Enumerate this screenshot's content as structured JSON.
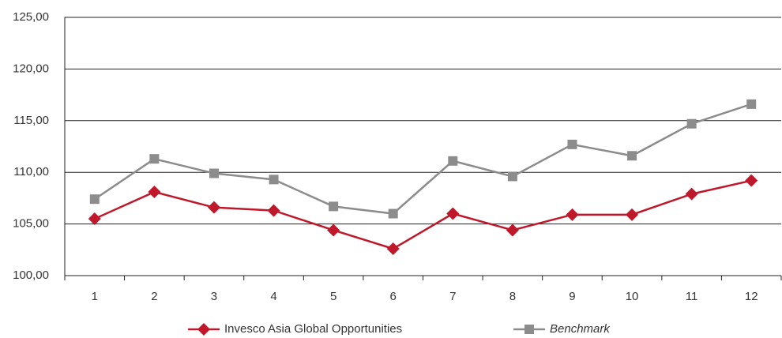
{
  "chart_data": {
    "type": "line",
    "categories": [
      "1",
      "2",
      "3",
      "4",
      "5",
      "6",
      "7",
      "8",
      "9",
      "10",
      "11",
      "12"
    ],
    "series": [
      {
        "name": "Invesco Asia Global Opportunities",
        "color": "#c0182b",
        "marker": "diamond",
        "italic": false,
        "values": [
          105.5,
          108.1,
          106.6,
          106.3,
          104.4,
          102.6,
          106.0,
          104.4,
          105.9,
          105.9,
          107.9,
          109.2
        ]
      },
      {
        "name": "Benchmark",
        "color": "#8c8c8c",
        "marker": "square",
        "italic": true,
        "values": [
          107.4,
          111.3,
          109.9,
          109.3,
          106.7,
          106.0,
          111.1,
          109.6,
          112.7,
          111.6,
          114.7,
          116.6
        ]
      }
    ],
    "ylim": [
      100,
      125
    ],
    "yticks": [
      {
        "value": 100,
        "label": "100,00"
      },
      {
        "value": 105,
        "label": "105,00"
      },
      {
        "value": 110,
        "label": "110,00"
      },
      {
        "value": 115,
        "label": "115,00"
      },
      {
        "value": 120,
        "label": "120,00"
      },
      {
        "value": 125,
        "label": "125,00"
      }
    ],
    "grid": true,
    "legend": "bottom"
  }
}
